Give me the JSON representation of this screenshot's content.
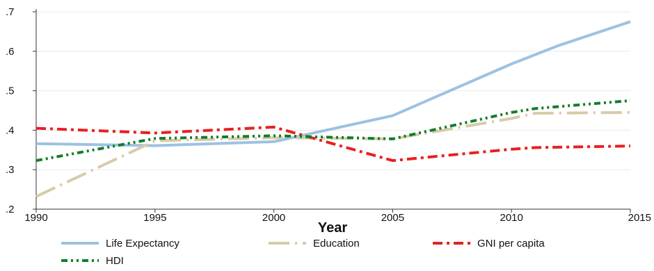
{
  "chart_data": {
    "type": "line",
    "title": "",
    "xlabel": "Year",
    "ylabel": "",
    "xlim": [
      1990,
      2015
    ],
    "ylim": [
      0.2,
      0.7
    ],
    "x_ticks": [
      1990,
      1995,
      2000,
      2005,
      2010,
      2015
    ],
    "x_tick_labels": [
      "1990",
      "1995",
      "2000",
      "2005",
      "2010",
      "2015"
    ],
    "y_ticks": [
      0.2,
      0.3,
      0.4,
      0.5,
      0.6,
      0.7
    ],
    "y_tick_labels": [
      ".2",
      ".3",
      ".4",
      ".5",
      ".6",
      ".7"
    ],
    "grid": "horizontal",
    "legend_position": "bottom",
    "series": [
      {
        "name": "Life Expectancy",
        "color": "#9cc2e3",
        "style": "solid",
        "x": [
          1990,
          1995,
          2000,
          2005,
          2010,
          2012,
          2015
        ],
        "y": [
          0.366,
          0.361,
          0.371,
          0.437,
          0.568,
          0.615,
          0.675
        ]
      },
      {
        "name": "Education",
        "color": "#d7cba8",
        "style": "longdash-dot",
        "x": [
          1990,
          1995,
          2000,
          2005,
          2010,
          2011,
          2015
        ],
        "y": [
          0.232,
          0.373,
          0.381,
          0.378,
          0.43,
          0.443,
          0.445
        ]
      },
      {
        "name": "GNI per capita",
        "color": "#e8201f",
        "style": "dash-dot",
        "x": [
          1990,
          1995,
          2000,
          2005,
          2010,
          2011,
          2015
        ],
        "y": [
          0.405,
          0.393,
          0.408,
          0.323,
          0.352,
          0.356,
          0.36
        ]
      },
      {
        "name": "HDI",
        "color": "#137d2a",
        "style": "dash-dot-dot",
        "x": [
          1990,
          1995,
          2000,
          2005,
          2010,
          2011,
          2015
        ],
        "y": [
          0.323,
          0.379,
          0.386,
          0.378,
          0.445,
          0.455,
          0.475
        ]
      }
    ]
  }
}
